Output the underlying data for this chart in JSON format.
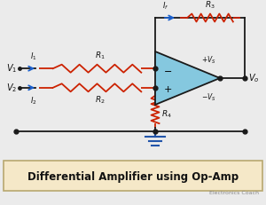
{
  "bg_color": "#ebebeb",
  "title_text": "Differential Amplifier using Op-Amp",
  "title_bg": "#f5e8c8",
  "title_color": "#111111",
  "title_border": "#b8a870",
  "wire_color": "#1a1a1a",
  "resistor_color": "#cc2200",
  "arrow_color": "#1a5fcc",
  "opamp_fill": "#85c8df",
  "opamp_edge": "#1a1a1a",
  "label_color": "#111111",
  "vs_color": "#111111",
  "ground_color": "#2255aa",
  "subtitle_color": "#888888",
  "bus_dot_color": "#333333"
}
